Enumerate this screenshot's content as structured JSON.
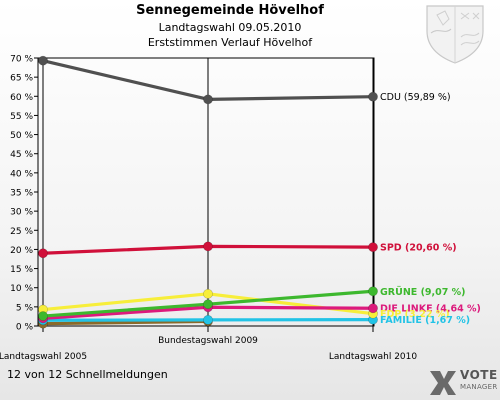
{
  "header": {
    "title": "Sennegemeinde Hövelhof",
    "subtitle": "Landtagswahl 09.05.2010",
    "subtitle2": "Erststimmen Verlauf Hövelhof"
  },
  "footer": {
    "status": "12 von 12 Schnellmeldungen"
  },
  "logo": {
    "line1": "VOTE",
    "line2": "MANAGER"
  },
  "chart_data": {
    "type": "line",
    "title": "Sennegemeinde Hövelhof",
    "categories": [
      "Landtagswahl 2005",
      "Bundestagswahl 2009",
      "Landtagswahl 2010"
    ],
    "ylim": [
      0,
      70
    ],
    "yticks": [
      0,
      5,
      10,
      15,
      20,
      25,
      30,
      35,
      40,
      45,
      50,
      55,
      60,
      65,
      70
    ],
    "ytick_suffix": " %",
    "grid": false,
    "legend": "end-of-line labels, right",
    "series": [
      {
        "name": "CDU",
        "label": "CDU (59,89 %)",
        "color": "#505050",
        "label_color": "#000000",
        "values": [
          69.3,
          59.2,
          59.89
        ]
      },
      {
        "name": "SPD",
        "label": "SPD (20,60 %)",
        "color": "#d0103a",
        "label_color": "#d0103a",
        "values": [
          19.0,
          20.8,
          20.6
        ]
      },
      {
        "name": "GRÜNE",
        "label": "GRÜNE (9,07 %)",
        "color": "#3db82e",
        "label_color": "#3db82e",
        "values": [
          2.6,
          5.7,
          9.07
        ]
      },
      {
        "name": "DIE LINKE",
        "label": "DIE LINKE (4,64 %)",
        "color": "#dc1a7c",
        "label_color": "#dc1a7c",
        "values": [
          2.0,
          4.9,
          4.64
        ]
      },
      {
        "name": "FDP",
        "label": "FDP (3,22 %)",
        "color": "#f7ee3a",
        "label_color": "#f7ee3a",
        "values": [
          4.3,
          8.4,
          3.22
        ]
      },
      {
        "name": "FAMILIE",
        "label": "FAMILIE (1,67 %)",
        "color": "#22c3e6",
        "label_color": "#22c3e6",
        "values": [
          1.5,
          1.6,
          1.67
        ]
      },
      {
        "name": "",
        "label": "",
        "color": "#8a6a2a",
        "label_color": "#8a6a2a",
        "values": [
          0.6,
          1.2,
          null
        ]
      }
    ]
  }
}
